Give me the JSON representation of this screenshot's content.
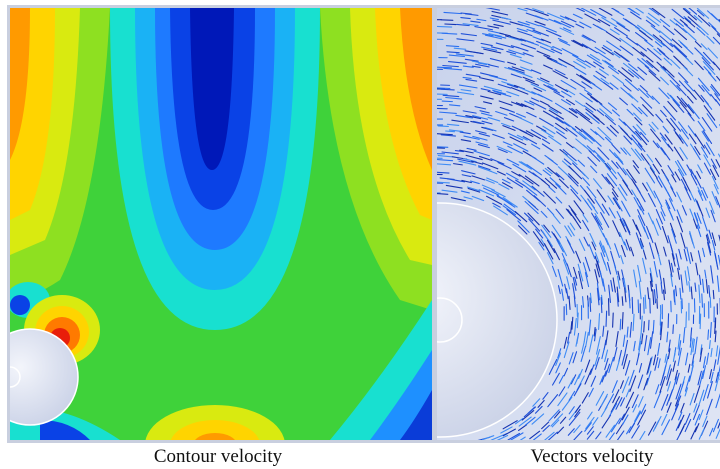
{
  "panels": [
    {
      "caption": "Contour velocity"
    },
    {
      "caption": "Vectors velocity"
    }
  ]
}
